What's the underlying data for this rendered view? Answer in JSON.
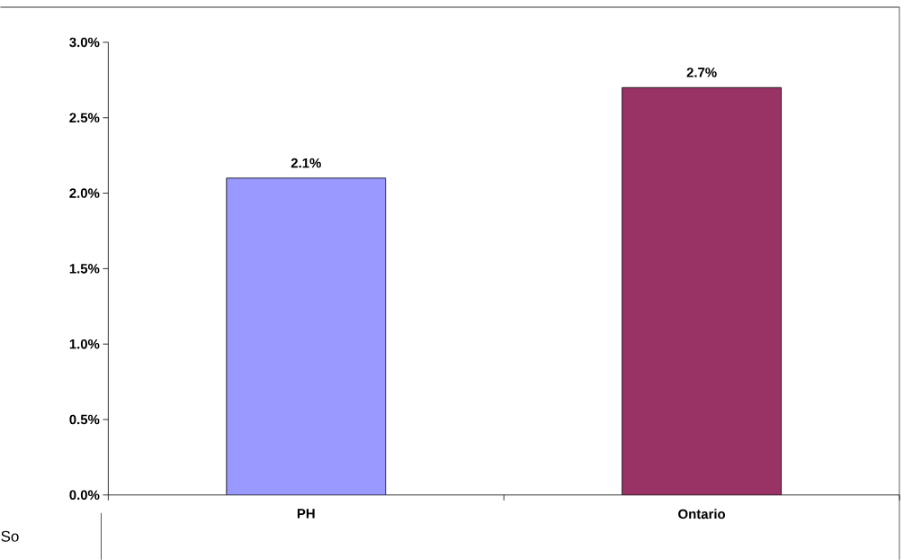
{
  "chart_data": {
    "type": "bar",
    "categories": [
      "PH",
      "Ontario"
    ],
    "values": [
      2.1,
      2.7
    ],
    "colors": [
      "#9999ff",
      "#993366"
    ],
    "ylim": [
      0,
      3.0
    ],
    "yticks": [
      {
        "value": 0,
        "label": "0.0%"
      },
      {
        "value": 0.5,
        "label": "0.5%"
      },
      {
        "value": 1.0,
        "label": "1.0%"
      },
      {
        "value": 1.5,
        "label": "1.5%"
      },
      {
        "value": 2.0,
        "label": "2.0%"
      },
      {
        "value": 2.5,
        "label": "2.5%"
      },
      {
        "value": 3.0,
        "label": "3.0%"
      }
    ],
    "value_labels": [
      "2.1%",
      "2.7%"
    ],
    "grid": false,
    "annotations": [
      "So"
    ]
  }
}
